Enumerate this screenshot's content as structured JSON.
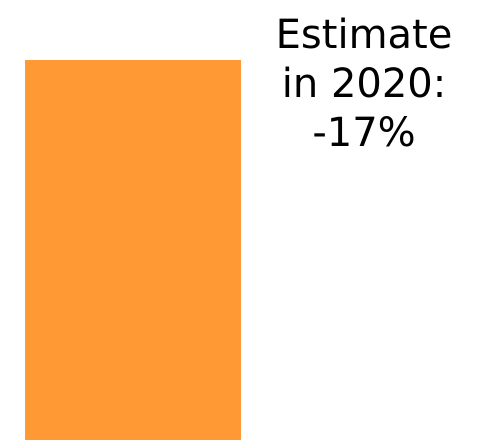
{
  "chart_data": {
    "type": "bar",
    "values": [
      -17
    ],
    "annotation": {
      "lines": [
        "Estimate",
        "in 2020:",
        "-17%"
      ]
    },
    "bar_color": "#FF9933",
    "grid": false,
    "legend": "none"
  }
}
